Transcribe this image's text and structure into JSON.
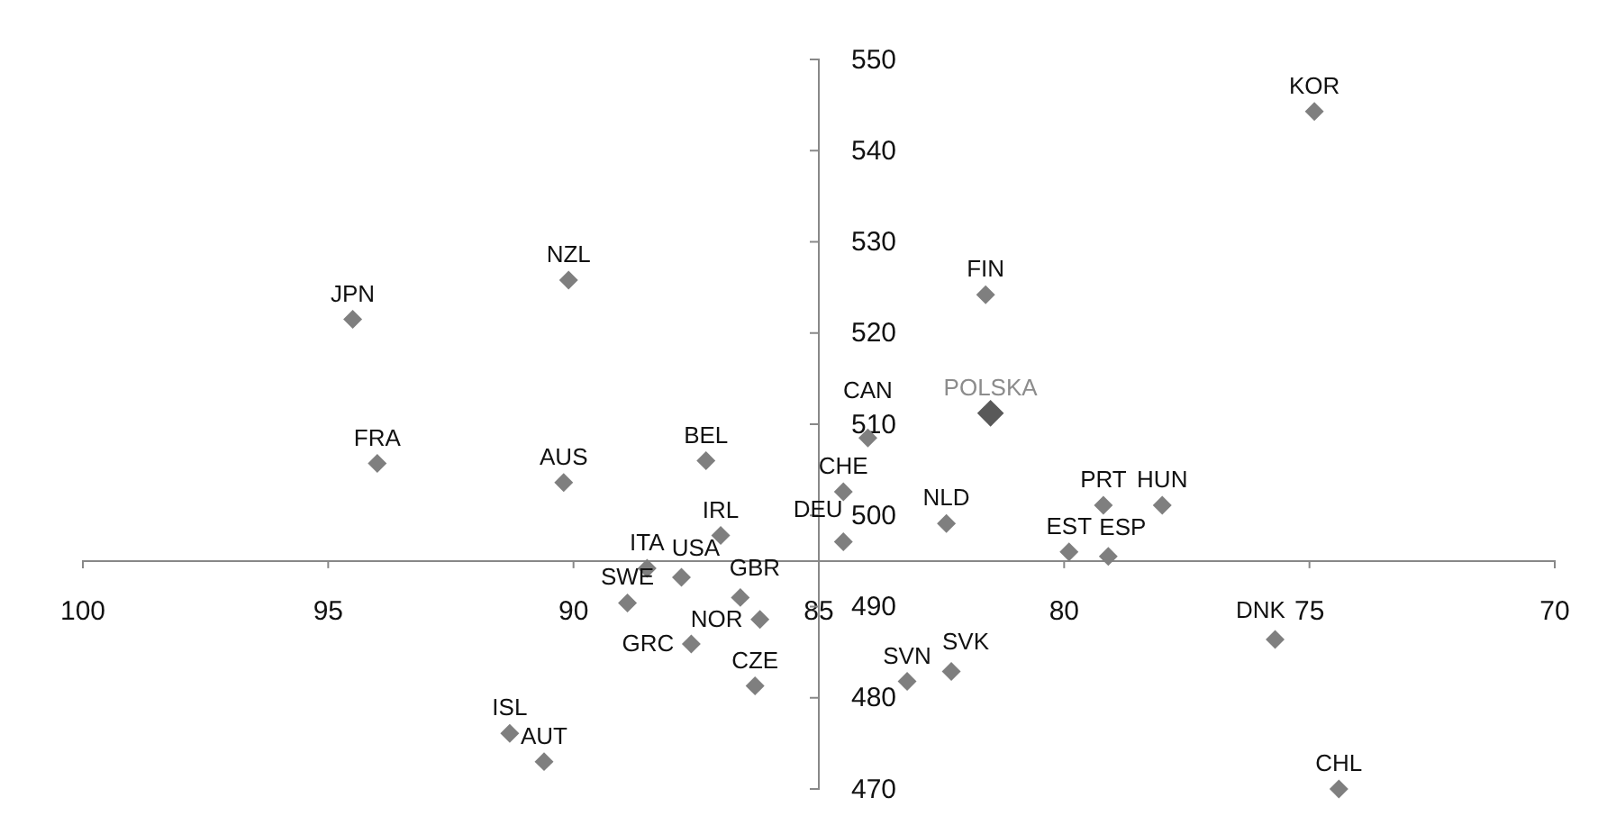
{
  "chart_data": {
    "type": "scatter",
    "marker": "diamond",
    "grid": false,
    "xlim": [
      100,
      70
    ],
    "xticks": [
      100,
      95,
      90,
      85,
      80,
      75,
      70
    ],
    "ylim": [
      470,
      550
    ],
    "yticks": [
      470,
      480,
      490,
      500,
      510,
      520,
      530,
      540,
      550
    ],
    "series": [
      {
        "color": "#7f7f7f",
        "x": [
          94.5,
          90.1,
          74.9,
          81.6,
          94.0,
          90.2,
          87.3,
          87.0,
          88.5,
          87.8,
          88.9,
          86.6,
          86.2,
          87.6,
          86.3,
          91.3,
          90.6,
          84.0,
          84.5,
          84.5,
          82.4,
          79.9,
          79.2,
          78.0,
          79.1,
          75.7,
          83.2,
          82.3,
          74.4
        ],
        "values": [
          521.5,
          525.8,
          544.3,
          524.2,
          505.7,
          503.6,
          506.0,
          497.8,
          494.2,
          493.2,
          490.4,
          491.0,
          488.6,
          485.9,
          481.3,
          476.1,
          473.0,
          508.5,
          502.6,
          497.1,
          499.1,
          496.0,
          501.1,
          501.1,
          495.5,
          486.4,
          481.8,
          482.9,
          470
        ],
        "value_labels": [
          "JPN",
          "NZL",
          "KOR",
          "FIN",
          "FRA",
          "AUS",
          "BEL",
          "IRL",
          "ITA",
          "USA",
          "SWE",
          "GBR",
          "NOR",
          "GRC",
          "CZE",
          "ISL",
          "AUT",
          "CAN",
          "CHE",
          "DEU",
          "NLD",
          "EST",
          "PRT",
          "HUN",
          "ESP",
          "DNK",
          "SVN",
          "SVK",
          "CHL"
        ]
      },
      {
        "color": "#595959",
        "x": [
          81.5
        ],
        "values": [
          511.2
        ],
        "value_labels": [
          "POLSKA"
        ]
      }
    ]
  }
}
